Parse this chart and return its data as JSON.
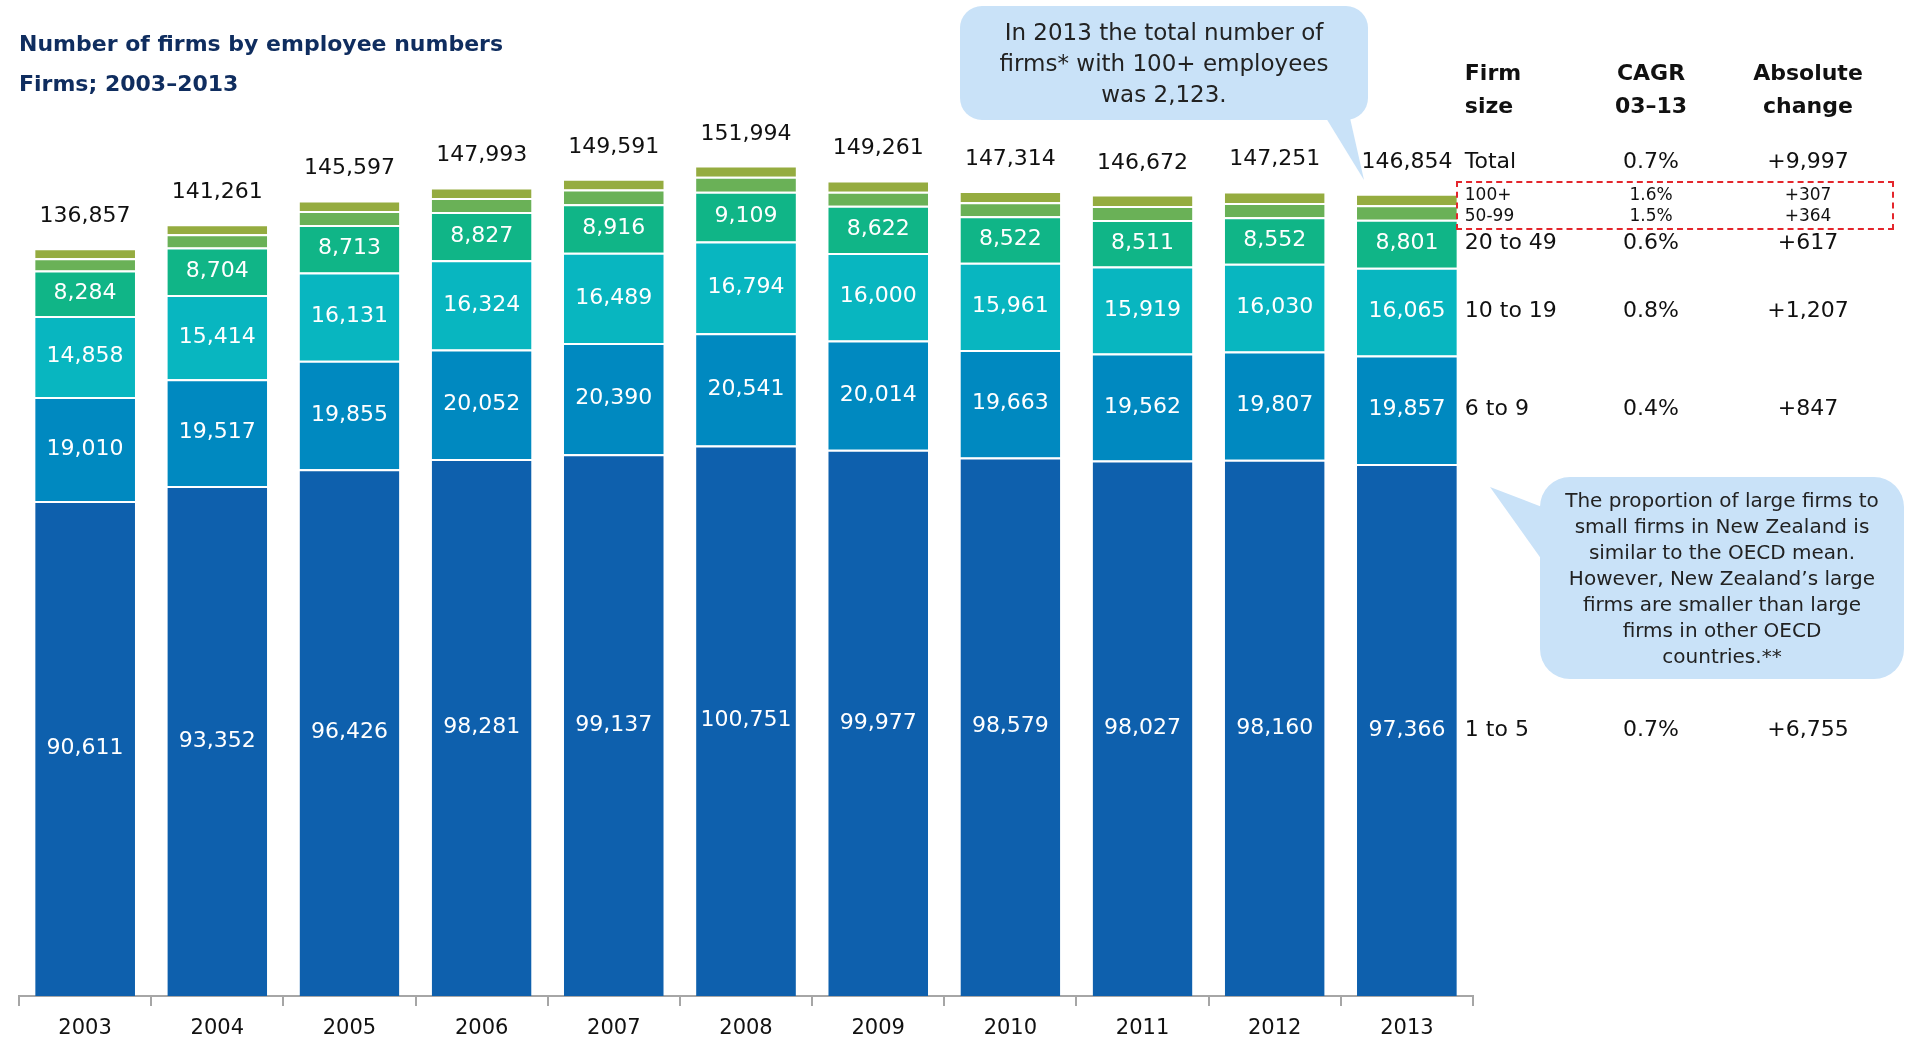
{
  "chart_data": {
    "type": "bar",
    "stacked": true,
    "title": "Number of firms by employee numbers",
    "subtitle": "Firms; 2003–2013",
    "categories": [
      "2003",
      "2004",
      "2005",
      "2006",
      "2007",
      "2008",
      "2009",
      "2010",
      "2011",
      "2012",
      "2013"
    ],
    "series": [
      {
        "name": "1 to 5",
        "color": "#0e60ad",
        "values": [
          90611,
          93352,
          96426,
          98281,
          99137,
          100751,
          99977,
          98579,
          98027,
          98160,
          97366
        ],
        "value_labels": [
          "90,611",
          "93,352",
          "96,426",
          "98,281",
          "99,137",
          "100,751",
          "99,977",
          "98,579",
          "98,027",
          "98,160",
          "97,366"
        ]
      },
      {
        "name": "6 to 9",
        "color": "#0089c0",
        "values": [
          19010,
          19517,
          19855,
          20052,
          20390,
          20541,
          20014,
          19663,
          19562,
          19807,
          19857
        ],
        "value_labels": [
          "19,010",
          "19,517",
          "19,855",
          "20,052",
          "20,390",
          "20,541",
          "20,014",
          "19,663",
          "19,562",
          "19,807",
          "19,857"
        ]
      },
      {
        "name": "10 to 19",
        "color": "#08b6c0",
        "values": [
          14858,
          15414,
          16131,
          16324,
          16489,
          16794,
          16000,
          15961,
          15919,
          16030,
          16065
        ],
        "value_labels": [
          "14,858",
          "15,414",
          "16,131",
          "16,324",
          "16,489",
          "16,794",
          "16,000",
          "15,961",
          "15,919",
          "16,030",
          "16,065"
        ]
      },
      {
        "name": "20 to 49",
        "color": "#10b587",
        "values": [
          8284,
          8704,
          8713,
          8827,
          8916,
          9109,
          8622,
          8522,
          8511,
          8552,
          8801
        ],
        "value_labels": [
          "8,284",
          "8,704",
          "8,713",
          "8,827",
          "8,916",
          "9,109",
          "8,622",
          "8,522",
          "8,511",
          "8,552",
          "8,801"
        ]
      },
      {
        "name": "50-99",
        "color": "#6ab157",
        "values": [
          2278,
          2424,
          2572,
          2559,
          2659,
          2749,
          2598,
          2539,
          2583,
          2600,
          2642
        ]
      },
      {
        "name": "100+",
        "color": "#95ac40",
        "values": [
          1816,
          1850,
          1900,
          1950,
          2000,
          2050,
          2050,
          2050,
          2070,
          2100,
          2123
        ]
      }
    ],
    "totals": [
      "136,857",
      "141,261",
      "145,597",
      "147,993",
      "149,591",
      "151,994",
      "149,261",
      "147,314",
      "146,672",
      "147,251",
      "146,854"
    ],
    "annotations": [
      "In 2013 the total number of firms* with 100+ employees was 2,123.",
      "The proportion of large firms to small firms in New Zealand is similar to the OECD mean. However, New Zealand’s large firms are smaller than large firms in other OECD countries.**",
      "Firm size",
      "CAGR 03–13",
      "Absolute change",
      "Total",
      "0.7%",
      "+9,997",
      "0.7%",
      "+6,755",
      "0.4%",
      "+847",
      "0.8%",
      "+1,207",
      "0.6%",
      "+617",
      "1.5%",
      "+364",
      "1.6%",
      "+307"
    ]
  }
}
